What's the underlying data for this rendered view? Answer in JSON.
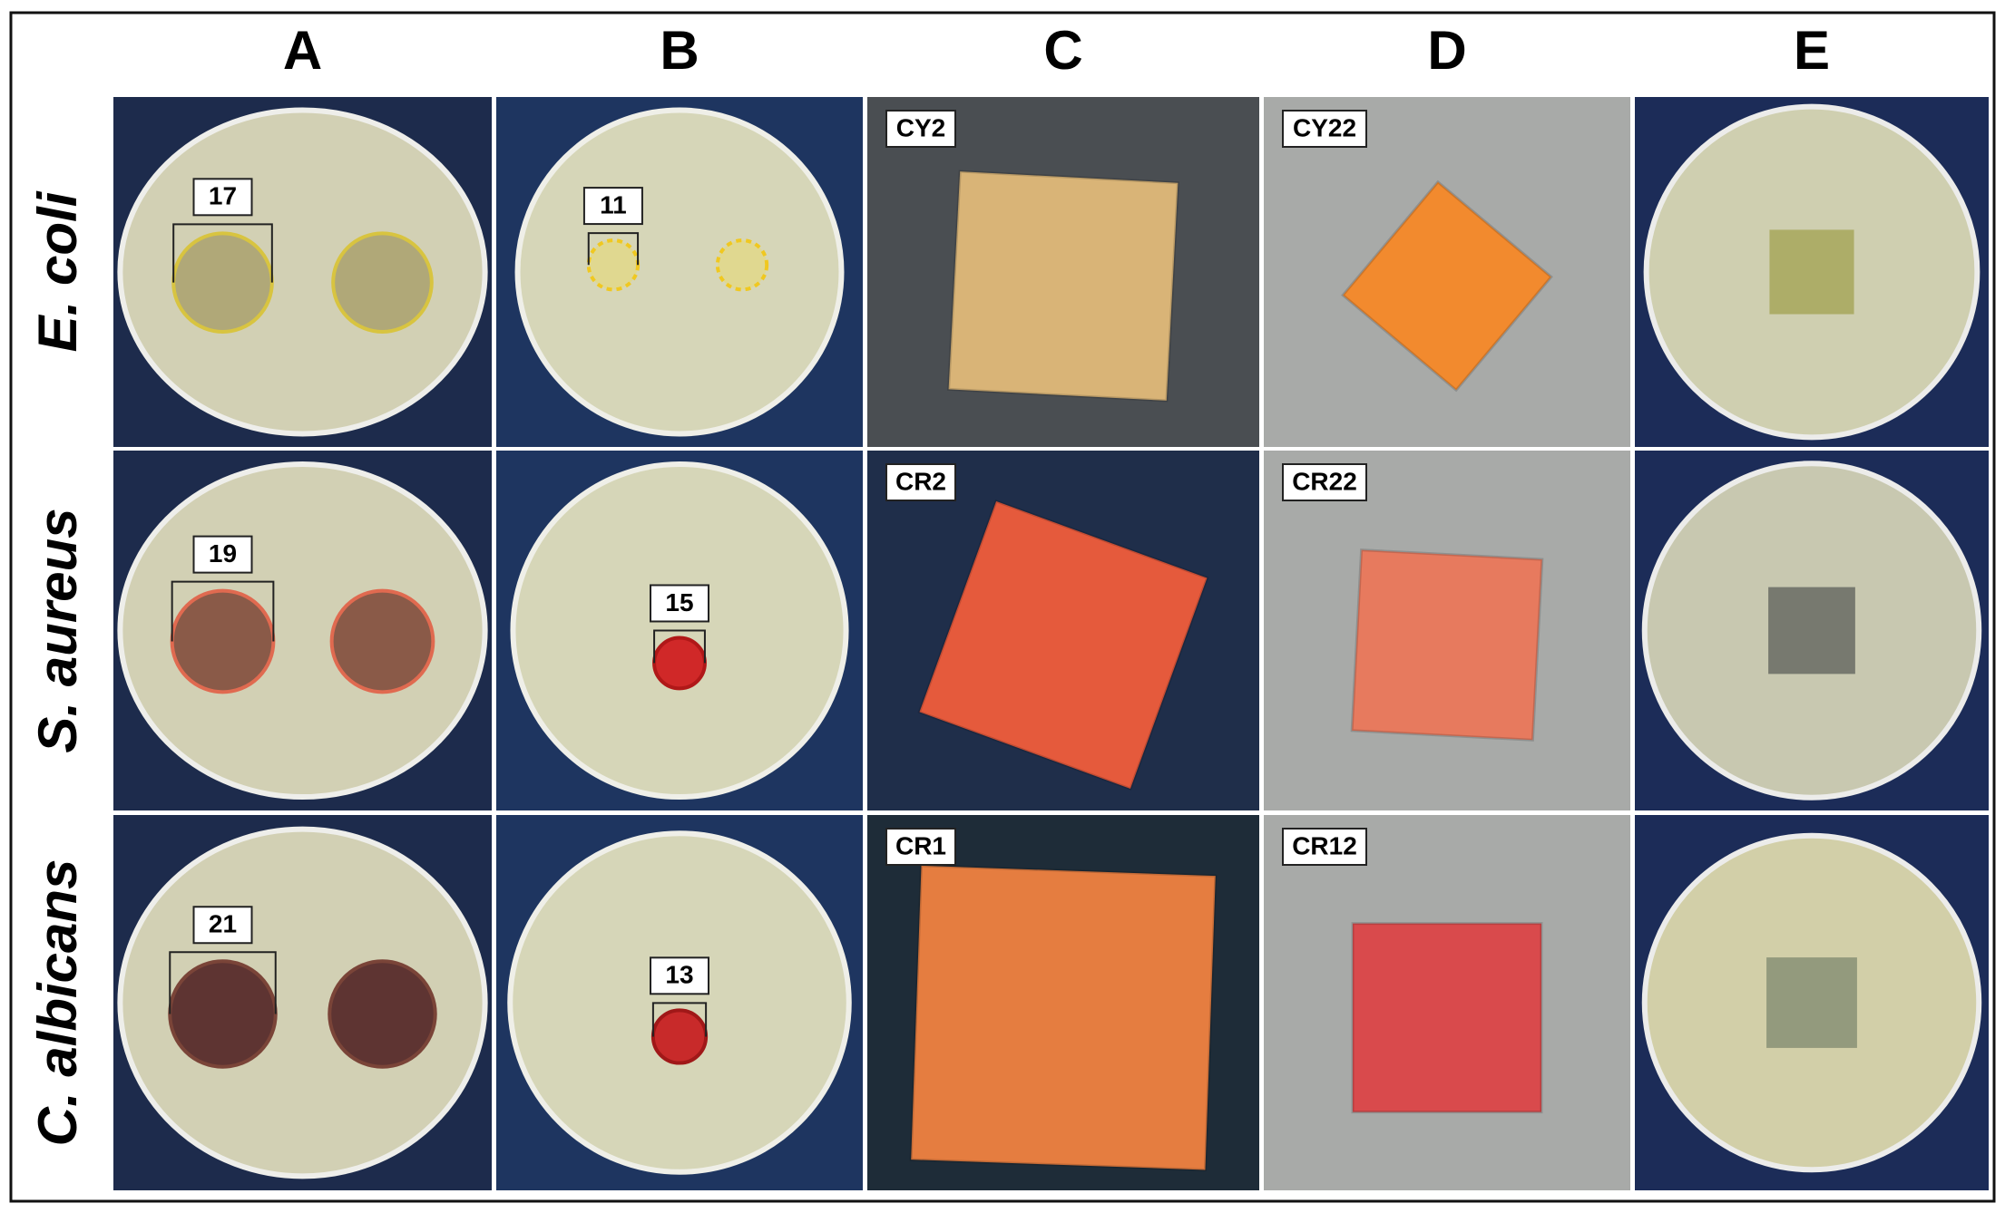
{
  "columns": [
    "A",
    "B",
    "C",
    "D",
    "E"
  ],
  "rows": [
    {
      "organism": "E. coli",
      "zone_A": 17,
      "zone_B": 11,
      "sample_C": "CY2",
      "sample_D": "CY22"
    },
    {
      "organism": "S. aureus",
      "zone_A": 19,
      "zone_B": 15,
      "sample_C": "CR2",
      "sample_D": "CR22"
    },
    {
      "organism": "C. albicans",
      "zone_A": 21,
      "zone_B": 13,
      "sample_C": "CR1",
      "sample_D": "CR12"
    }
  ]
}
